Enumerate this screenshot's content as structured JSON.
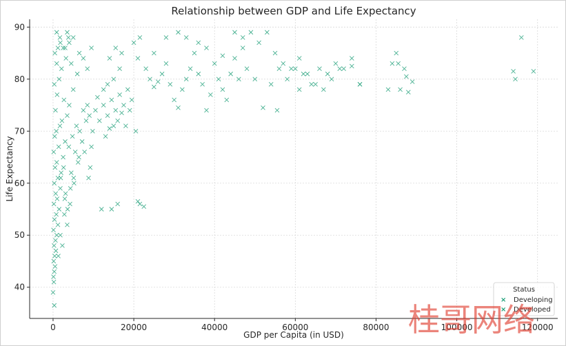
{
  "chart_data": {
    "type": "scatter",
    "title": "Relationship between GDP and Life Expectancy",
    "xlabel": "GDP per Capita (in USD)",
    "ylabel": "Life Expectancy",
    "xlim": [
      -5800,
      125000
    ],
    "ylim": [
      34,
      91.5
    ],
    "xticks": [
      0,
      20000,
      40000,
      60000,
      80000,
      100000,
      120000
    ],
    "yticks": [
      40,
      50,
      60,
      70,
      80,
      90
    ],
    "grid": true,
    "marker": "x",
    "legend": {
      "title": "Status",
      "placement": "lower-right",
      "entries": [
        {
          "label": "Developing",
          "color": "#1b9e77"
        },
        {
          "label": "Developed",
          "color": "#1b9e77"
        }
      ]
    },
    "series": [
      {
        "name": "Developing",
        "color": "#1b9e77",
        "points": [
          [
            0,
            39
          ],
          [
            300,
            36.5
          ],
          [
            200,
            41
          ],
          [
            100,
            42
          ],
          [
            300,
            43
          ],
          [
            500,
            44
          ],
          [
            150,
            45
          ],
          [
            400,
            46
          ],
          [
            700,
            47
          ],
          [
            250,
            48
          ],
          [
            600,
            49
          ],
          [
            900,
            50
          ],
          [
            100,
            51
          ],
          [
            1200,
            52
          ],
          [
            350,
            53
          ],
          [
            800,
            54
          ],
          [
            1500,
            55
          ],
          [
            200,
            56
          ],
          [
            1000,
            57
          ],
          [
            650,
            58
          ],
          [
            1800,
            59
          ],
          [
            300,
            60
          ],
          [
            1200,
            61
          ],
          [
            2000,
            62
          ],
          [
            500,
            63
          ],
          [
            900,
            64
          ],
          [
            2500,
            65
          ],
          [
            150,
            66
          ],
          [
            1400,
            67
          ],
          [
            3000,
            68
          ],
          [
            400,
            69
          ],
          [
            800,
            70
          ],
          [
            1700,
            71
          ],
          [
            2200,
            72
          ],
          [
            3500,
            73
          ],
          [
            600,
            74
          ],
          [
            4000,
            75
          ],
          [
            2700,
            76
          ],
          [
            1000,
            77
          ],
          [
            5000,
            78
          ],
          [
            300,
            79
          ],
          [
            1500,
            80
          ],
          [
            6000,
            81
          ],
          [
            2100,
            82
          ],
          [
            900,
            83
          ],
          [
            3200,
            84
          ],
          [
            450,
            85
          ],
          [
            2500,
            86
          ],
          [
            1800,
            87
          ],
          [
            3800,
            88
          ],
          [
            900,
            89
          ],
          [
            1300,
            46
          ],
          [
            2300,
            48
          ],
          [
            1800,
            50
          ],
          [
            3500,
            52
          ],
          [
            2800,
            54
          ],
          [
            4200,
            56
          ],
          [
            3100,
            58
          ],
          [
            5200,
            60
          ],
          [
            4500,
            62
          ],
          [
            6200,
            64
          ],
          [
            5500,
            66
          ],
          [
            7200,
            68
          ],
          [
            6600,
            70
          ],
          [
            8200,
            72
          ],
          [
            7500,
            74
          ],
          [
            9000,
            73
          ],
          [
            8500,
            75
          ],
          [
            5800,
            71
          ],
          [
            4800,
            69
          ],
          [
            3900,
            67
          ],
          [
            2600,
            63
          ],
          [
            1900,
            61
          ],
          [
            2900,
            57
          ],
          [
            3600,
            55
          ],
          [
            4300,
            59
          ],
          [
            5100,
            61
          ],
          [
            6400,
            65
          ],
          [
            7800,
            66
          ],
          [
            9200,
            63
          ],
          [
            8800,
            61
          ],
          [
            9500,
            67
          ],
          [
            9800,
            70
          ],
          [
            10500,
            74
          ],
          [
            11500,
            72
          ],
          [
            12500,
            75
          ],
          [
            13500,
            73
          ],
          [
            14500,
            76
          ],
          [
            15500,
            74
          ],
          [
            16500,
            77
          ],
          [
            17500,
            75
          ],
          [
            18500,
            78
          ],
          [
            19500,
            76
          ],
          [
            12000,
            55
          ],
          [
            14500,
            55
          ],
          [
            16000,
            56
          ],
          [
            21000,
            56.5
          ],
          [
            21500,
            56
          ],
          [
            22500,
            55.5
          ],
          [
            13000,
            69
          ],
          [
            14000,
            70.5
          ],
          [
            15000,
            71
          ],
          [
            16000,
            72
          ],
          [
            17000,
            73.5
          ],
          [
            18000,
            71
          ],
          [
            19000,
            74
          ],
          [
            20500,
            70
          ],
          [
            11000,
            76.5
          ],
          [
            12500,
            78
          ],
          [
            13500,
            79
          ],
          [
            15000,
            80
          ],
          [
            16500,
            82
          ],
          [
            14000,
            84
          ],
          [
            17000,
            85
          ],
          [
            15500,
            86
          ],
          [
            9500,
            86
          ],
          [
            21500,
            88
          ],
          [
            20000,
            87
          ],
          [
            21000,
            84
          ],
          [
            23000,
            82
          ],
          [
            24000,
            80
          ],
          [
            25000,
            78.5
          ],
          [
            26000,
            79.5
          ],
          [
            27000,
            81
          ],
          [
            28000,
            83
          ],
          [
            29000,
            79
          ],
          [
            30000,
            76
          ],
          [
            31000,
            74.5
          ],
          [
            32000,
            78
          ],
          [
            33000,
            80
          ],
          [
            34000,
            82
          ],
          [
            35000,
            85
          ],
          [
            36000,
            81
          ],
          [
            37000,
            79
          ],
          [
            38000,
            74
          ],
          [
            39000,
            77
          ],
          [
            40000,
            83
          ],
          [
            41000,
            80
          ],
          [
            42000,
            78
          ],
          [
            43000,
            76
          ],
          [
            44000,
            81
          ],
          [
            45000,
            84
          ],
          [
            46000,
            80
          ],
          [
            47000,
            86
          ],
          [
            48000,
            82
          ],
          [
            50000,
            80
          ],
          [
            52000,
            74.5
          ],
          [
            54000,
            79
          ],
          [
            55500,
            74
          ],
          [
            56000,
            82
          ],
          [
            58000,
            80
          ],
          [
            60000,
            82
          ],
          [
            61000,
            78
          ],
          [
            62000,
            81
          ],
          [
            64000,
            79
          ],
          [
            66000,
            82
          ],
          [
            68000,
            81
          ],
          [
            70000,
            83
          ],
          [
            72000,
            82
          ],
          [
            74000,
            84
          ],
          [
            76000,
            79
          ],
          [
            3000,
            86
          ],
          [
            4000,
            87
          ],
          [
            5000,
            88
          ],
          [
            3500,
            89
          ],
          [
            1700,
            88
          ],
          [
            1200,
            86
          ],
          [
            6500,
            85
          ],
          [
            7500,
            84
          ],
          [
            4500,
            83
          ],
          [
            8500,
            82
          ]
        ]
      },
      {
        "name": "Developed",
        "color": "#1b9e77",
        "points": [
          [
            25000,
            85
          ],
          [
            28000,
            88
          ],
          [
            31000,
            89
          ],
          [
            33000,
            88
          ],
          [
            36000,
            87
          ],
          [
            38000,
            86
          ],
          [
            42000,
            84.5
          ],
          [
            45000,
            89
          ],
          [
            47000,
            88
          ],
          [
            49000,
            89
          ],
          [
            51000,
            87
          ],
          [
            53000,
            89
          ],
          [
            55000,
            85
          ],
          [
            57000,
            83
          ],
          [
            59000,
            82
          ],
          [
            61000,
            84
          ],
          [
            63000,
            81
          ],
          [
            65000,
            79
          ],
          [
            67000,
            78
          ],
          [
            69000,
            80
          ],
          [
            71000,
            82
          ],
          [
            74000,
            82.5
          ],
          [
            76000,
            79
          ],
          [
            83000,
            78
          ],
          [
            84000,
            83
          ],
          [
            85000,
            85
          ],
          [
            85500,
            83
          ],
          [
            86000,
            78
          ],
          [
            87000,
            82
          ],
          [
            87500,
            80.5
          ],
          [
            88000,
            77.5
          ],
          [
            89000,
            79.5
          ],
          [
            114000,
            81.5
          ],
          [
            114500,
            80
          ],
          [
            116000,
            88
          ],
          [
            119000,
            81.5
          ]
        ]
      }
    ]
  },
  "watermark": "桂哥网络"
}
